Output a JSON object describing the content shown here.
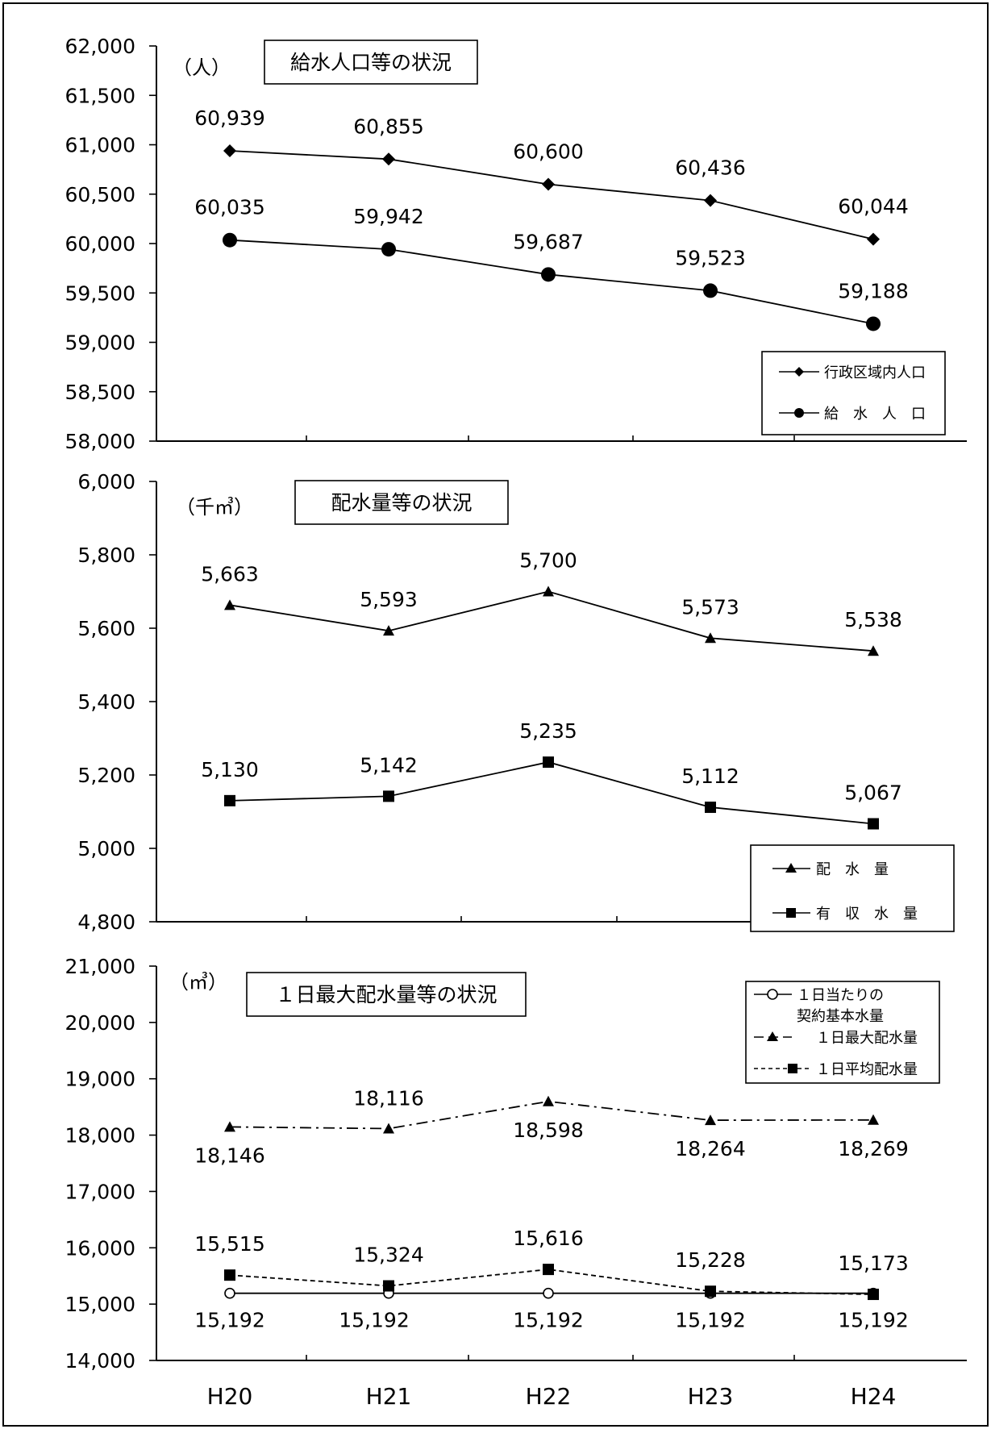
{
  "chart_data": [
    {
      "type": "line",
      "title": "給水人口等の状況",
      "unit_label": "（人）",
      "categories": [
        "H20",
        "H21",
        "H22",
        "H23",
        "H24"
      ],
      "ylim": [
        58000,
        62000
      ],
      "yticks": [
        "62,000",
        "61,500",
        "61,000",
        "60,500",
        "60,000",
        "59,500",
        "59,000",
        "58,500",
        "58,000"
      ],
      "legend_position": "bottom-right",
      "series": [
        {
          "name": "行政区域内人口",
          "marker": "diamond",
          "dash": "solid",
          "values": [
            60939,
            60855,
            60600,
            60436,
            60044
          ],
          "labels": [
            "60,939",
            "60,855",
            "60,600",
            "60,436",
            "60,044"
          ]
        },
        {
          "name": "給　水　人　口",
          "marker": "circle",
          "dash": "solid",
          "values": [
            60035,
            59942,
            59687,
            59523,
            59188
          ],
          "labels": [
            "60,035",
            "59,942",
            "59,687",
            "59,523",
            "59,188"
          ]
        }
      ]
    },
    {
      "type": "line",
      "title": "配水量等の状況",
      "unit_label": "（千㎥）",
      "categories": [
        "H20",
        "H21",
        "H22",
        "H23",
        "H24"
      ],
      "ylim": [
        4800,
        6000
      ],
      "yticks": [
        "6,000",
        "5,800",
        "5,600",
        "5,400",
        "5,200",
        "5,000",
        "4,800"
      ],
      "legend_position": "bottom-right",
      "series": [
        {
          "name": "配　水　量",
          "marker": "triangle",
          "dash": "solid",
          "values": [
            5663,
            5593,
            5700,
            5573,
            5538
          ],
          "labels": [
            "5,663",
            "5,593",
            "5,700",
            "5,573",
            "5,538"
          ]
        },
        {
          "name": "有　収　水　量",
          "marker": "square",
          "dash": "solid",
          "values": [
            5130,
            5142,
            5235,
            5112,
            5067
          ],
          "labels": [
            "5,130",
            "5,142",
            "5,235",
            "5,112",
            "5,067"
          ]
        }
      ]
    },
    {
      "type": "line",
      "title": "１日最大配水量等の状況",
      "unit_label": "（㎥）",
      "categories": [
        "H20",
        "H21",
        "H22",
        "H23",
        "H24"
      ],
      "ylim": [
        14000,
        21000
      ],
      "yticks": [
        "21,000",
        "20,000",
        "19,000",
        "18,000",
        "17,000",
        "16,000",
        "15,000",
        "14,000"
      ],
      "legend_position": "top-right",
      "series": [
        {
          "name": "１日当たりの契約基本水量",
          "name_lines": [
            "１日当たりの",
            "契約基本水量"
          ],
          "marker": "open-circle",
          "dash": "solid",
          "values": [
            15192,
            15192,
            15192,
            15192,
            15192
          ],
          "labels": [
            "15,192",
            "15,192",
            "15,192",
            "15,192",
            "15,192"
          ]
        },
        {
          "name": "１日最大配水量",
          "marker": "triangle",
          "dash": "dashdot",
          "values": [
            18146,
            18116,
            18598,
            18264,
            18269
          ],
          "labels": [
            "18,146",
            "18,116",
            "18,598",
            "18,264",
            "18,269"
          ]
        },
        {
          "name": "１日平均配水量",
          "marker": "square",
          "dash": "dashed",
          "values": [
            15515,
            15324,
            15616,
            15228,
            15173
          ],
          "labels": [
            "15,515",
            "15,324",
            "15,616",
            "15,228",
            "15,173"
          ]
        }
      ]
    }
  ]
}
